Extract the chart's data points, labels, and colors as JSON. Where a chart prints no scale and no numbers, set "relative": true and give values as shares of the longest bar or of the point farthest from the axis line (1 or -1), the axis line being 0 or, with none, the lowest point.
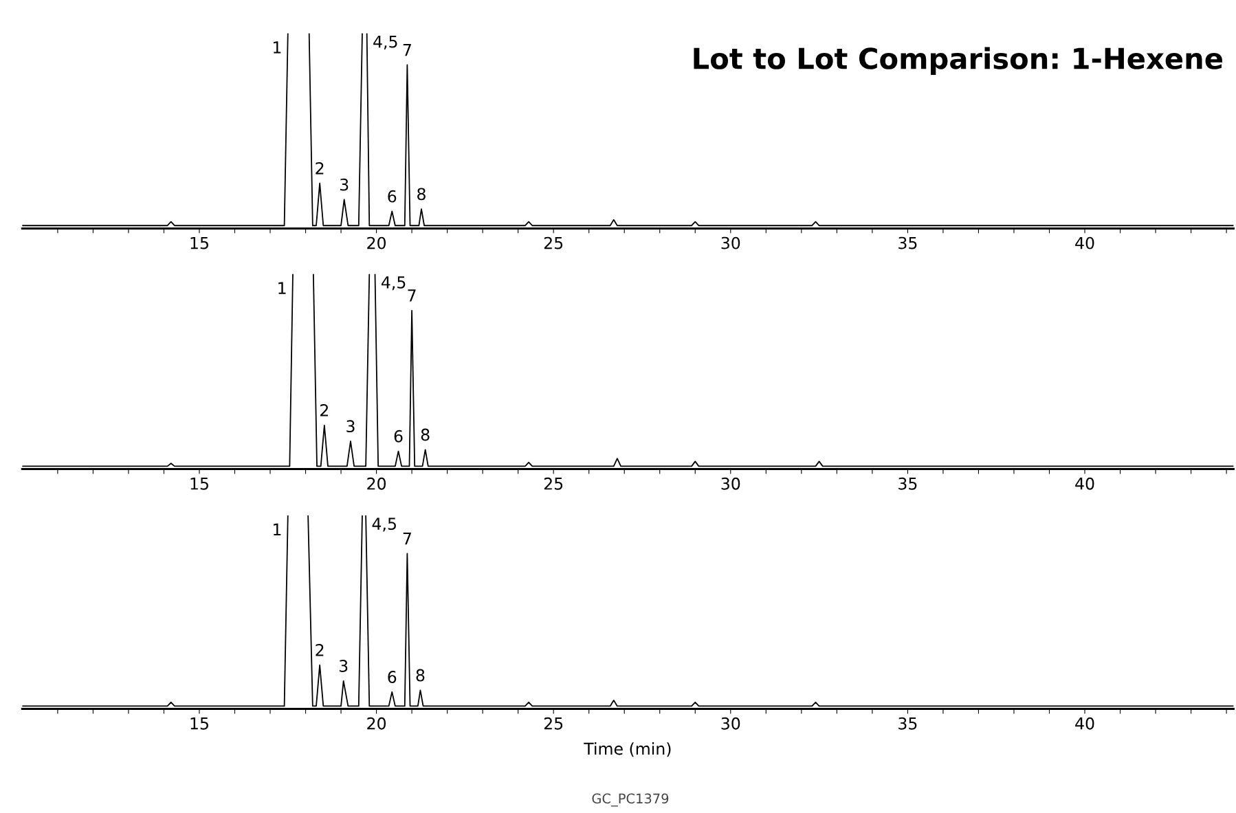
{
  "chart_data": [
    {
      "type": "line",
      "title": "Lot to Lot Comparison: 1-Hexene",
      "relative": true,
      "tick_labels": "x",
      "grid": false,
      "xlim": [
        10,
        44.2
      ],
      "xticks": [
        {
          "value": 11,
          "label": null
        },
        {
          "value": 12,
          "label": null
        },
        {
          "value": 13,
          "label": null
        },
        {
          "value": 14,
          "label": null
        },
        15,
        {
          "value": 16,
          "label": null
        },
        {
          "value": 17,
          "label": null
        },
        {
          "value": 18,
          "label": null
        },
        {
          "value": 19,
          "label": null
        },
        20,
        {
          "value": 21,
          "label": null
        },
        {
          "value": 22,
          "label": null
        },
        {
          "value": 23,
          "label": null
        },
        {
          "value": 24,
          "label": null
        },
        25,
        {
          "value": 26,
          "label": null
        },
        {
          "value": 27,
          "label": null
        },
        {
          "value": 28,
          "label": null
        },
        {
          "value": 29,
          "label": null
        },
        30,
        {
          "value": 31,
          "label": null
        },
        {
          "value": 32,
          "label": null
        },
        {
          "value": 33,
          "label": null
        },
        {
          "value": 34,
          "label": null
        },
        35,
        {
          "value": 36,
          "label": null
        },
        {
          "value": 37,
          "label": null
        },
        {
          "value": 38,
          "label": null
        },
        {
          "value": 39,
          "label": null
        },
        40,
        {
          "value": 41,
          "label": null
        },
        {
          "value": 42,
          "label": null
        },
        {
          "value": 43,
          "label": null
        },
        {
          "value": 44,
          "label": null
        }
      ],
      "series": [
        {
          "color": "#000000",
          "x": [
            10,
            13.5,
            14.1,
            14.2,
            14.3,
            17.4,
            17.5,
            17.8,
            18.1,
            18.2,
            18.3,
            18.4,
            18.5,
            19.0,
            19.09,
            19.2,
            19.5,
            19.6,
            19.67,
            19.73,
            19.8,
            20.35,
            20.44,
            20.53,
            20.8,
            20.87,
            20.95,
            21.2,
            21.27,
            21.35,
            24.2,
            24.3,
            24.4,
            26.6,
            26.7,
            26.8,
            28.9,
            29.0,
            29.1,
            32.3,
            32.4,
            32.5,
            44.2
          ],
          "values": [
            0,
            0,
            0,
            0.02,
            0,
            0,
            1,
            null,
            1,
            0,
            0,
            0.22,
            0,
            0,
            0.135,
            0,
            0,
            1,
            null,
            1,
            0,
            0,
            0.074,
            0,
            0,
            0.836,
            0,
            0,
            0.086,
            0,
            0,
            0.02,
            0,
            0,
            0.03,
            0,
            0,
            0.02,
            0,
            0,
            0.02,
            0,
            0
          ]
        }
      ],
      "annotations": [
        {
          "text": "1",
          "x": 17.5,
          "y": 1
        },
        {
          "text": "2",
          "x": 18.4,
          "y": 0.22
        },
        {
          "text": "3",
          "x": 19.09,
          "y": 0.135
        },
        {
          "text": "4,5",
          "x": 19.73,
          "y": 1
        },
        {
          "text": "6",
          "x": 20.44,
          "y": 0.074
        },
        {
          "text": "7",
          "x": 20.87,
          "y": 0.836
        },
        {
          "text": "8",
          "x": 21.27,
          "y": 0.086
        }
      ]
    },
    {
      "type": "line",
      "relative": true,
      "tick_labels": "x",
      "grid": false,
      "xlim": [
        10,
        44.2
      ],
      "xticks": [
        {
          "value": 11,
          "label": null
        },
        {
          "value": 12,
          "label": null
        },
        {
          "value": 13,
          "label": null
        },
        {
          "value": 14,
          "label": null
        },
        15,
        {
          "value": 16,
          "label": null
        },
        {
          "value": 17,
          "label": null
        },
        {
          "value": 18,
          "label": null
        },
        {
          "value": 19,
          "label": null
        },
        20,
        {
          "value": 21,
          "label": null
        },
        {
          "value": 22,
          "label": null
        },
        {
          "value": 23,
          "label": null
        },
        {
          "value": 24,
          "label": null
        },
        25,
        {
          "value": 26,
          "label": null
        },
        {
          "value": 27,
          "label": null
        },
        {
          "value": 28,
          "label": null
        },
        {
          "value": 29,
          "label": null
        },
        30,
        {
          "value": 31,
          "label": null
        },
        {
          "value": 32,
          "label": null
        },
        {
          "value": 33,
          "label": null
        },
        {
          "value": 34,
          "label": null
        },
        35,
        {
          "value": 36,
          "label": null
        },
        {
          "value": 37,
          "label": null
        },
        {
          "value": 38,
          "label": null
        },
        {
          "value": 39,
          "label": null
        },
        40,
        {
          "value": 41,
          "label": null
        },
        {
          "value": 42,
          "label": null
        },
        {
          "value": 43,
          "label": null
        },
        {
          "value": 44,
          "label": null
        }
      ],
      "series": [
        {
          "color": "#000000",
          "x": [
            10,
            14.1,
            14.2,
            14.3,
            17.55,
            17.64,
            17.93,
            18.22,
            18.32,
            18.43,
            18.53,
            18.63,
            19.17,
            19.27,
            19.37,
            19.7,
            19.8,
            19.88,
            19.96,
            20.05,
            20.53,
            20.62,
            20.71,
            20.93,
            21.0,
            21.08,
            21.3,
            21.38,
            21.46,
            24.2,
            24.3,
            24.4,
            26.7,
            26.8,
            26.9,
            28.9,
            29.0,
            29.1,
            32.4,
            32.5,
            32.6,
            44.2
          ],
          "values": [
            0,
            0,
            0.015,
            0,
            0,
            1,
            null,
            1,
            0,
            0,
            0.213,
            0,
            0,
            0.13,
            0,
            0,
            1,
            null,
            1,
            0,
            0,
            0.078,
            0,
            0,
            0.81,
            0,
            0,
            0.086,
            0,
            0,
            0.02,
            0,
            0,
            0.04,
            0,
            0,
            0.025,
            0,
            0,
            0.025,
            0,
            0
          ]
        }
      ],
      "annotations": [
        {
          "text": "1",
          "x": 17.64,
          "y": 1
        },
        {
          "text": "2",
          "x": 18.53,
          "y": 0.213
        },
        {
          "text": "3",
          "x": 19.27,
          "y": 0.13
        },
        {
          "text": "4,5",
          "x": 19.96,
          "y": 1
        },
        {
          "text": "6",
          "x": 20.62,
          "y": 0.078
        },
        {
          "text": "7",
          "x": 21.0,
          "y": 0.81
        },
        {
          "text": "8",
          "x": 21.38,
          "y": 0.086
        }
      ]
    },
    {
      "type": "line",
      "relative": true,
      "tick_labels": "x",
      "grid": false,
      "xlim": [
        10,
        44.2
      ],
      "xlabel": "Time (min)",
      "xticks": [
        {
          "value": 11,
          "label": null
        },
        {
          "value": 12,
          "label": null
        },
        {
          "value": 13,
          "label": null
        },
        {
          "value": 14,
          "label": null
        },
        15,
        {
          "value": 16,
          "label": null
        },
        {
          "value": 17,
          "label": null
        },
        {
          "value": 18,
          "label": null
        },
        {
          "value": 19,
          "label": null
        },
        20,
        {
          "value": 21,
          "label": null
        },
        {
          "value": 22,
          "label": null
        },
        {
          "value": 23,
          "label": null
        },
        {
          "value": 24,
          "label": null
        },
        25,
        {
          "value": 26,
          "label": null
        },
        {
          "value": 27,
          "label": null
        },
        {
          "value": 28,
          "label": null
        },
        {
          "value": 29,
          "label": null
        },
        30,
        {
          "value": 31,
          "label": null
        },
        {
          "value": 32,
          "label": null
        },
        {
          "value": 33,
          "label": null
        },
        {
          "value": 34,
          "label": null
        },
        35,
        {
          "value": 36,
          "label": null
        },
        {
          "value": 37,
          "label": null
        },
        {
          "value": 38,
          "label": null
        },
        {
          "value": 39,
          "label": null
        },
        40,
        {
          "value": 41,
          "label": null
        },
        {
          "value": 42,
          "label": null
        },
        {
          "value": 43,
          "label": null
        },
        {
          "value": 44,
          "label": null
        }
      ],
      "series": [
        {
          "color": "#000000",
          "x": [
            10,
            13.5,
            14.1,
            14.2,
            14.3,
            17.4,
            17.5,
            17.8,
            18.07,
            18.2,
            18.3,
            18.4,
            18.5,
            19.0,
            19.07,
            19.2,
            19.5,
            19.6,
            19.65,
            19.7,
            19.8,
            20.35,
            20.44,
            20.53,
            20.8,
            20.87,
            20.95,
            21.17,
            21.24,
            21.32,
            24.2,
            24.3,
            24.4,
            26.6,
            26.7,
            26.8,
            28.9,
            29.0,
            29.1,
            32.3,
            32.4,
            32.5,
            44.2
          ],
          "values": [
            0,
            0,
            0,
            0.02,
            0,
            0,
            1,
            null,
            1,
            0,
            0,
            0.215,
            0,
            0,
            0.132,
            0,
            0,
            1,
            null,
            1,
            0,
            0,
            0.074,
            0,
            0,
            0.8,
            0,
            0,
            0.083,
            0,
            0,
            0.02,
            0,
            0,
            0.03,
            0,
            0,
            0.02,
            0,
            0,
            0.02,
            0,
            0
          ]
        }
      ],
      "annotations": [
        {
          "text": "1",
          "x": 17.5,
          "y": 1
        },
        {
          "text": "2",
          "x": 18.4,
          "y": 0.215
        },
        {
          "text": "3",
          "x": 19.07,
          "y": 0.132
        },
        {
          "text": "4,5",
          "x": 19.7,
          "y": 1
        },
        {
          "text": "6",
          "x": 20.44,
          "y": 0.074
        },
        {
          "text": "7",
          "x": 20.87,
          "y": 0.8
        },
        {
          "text": "8",
          "x": 21.24,
          "y": 0.083
        },
        "GC_PC1379"
      ]
    }
  ]
}
